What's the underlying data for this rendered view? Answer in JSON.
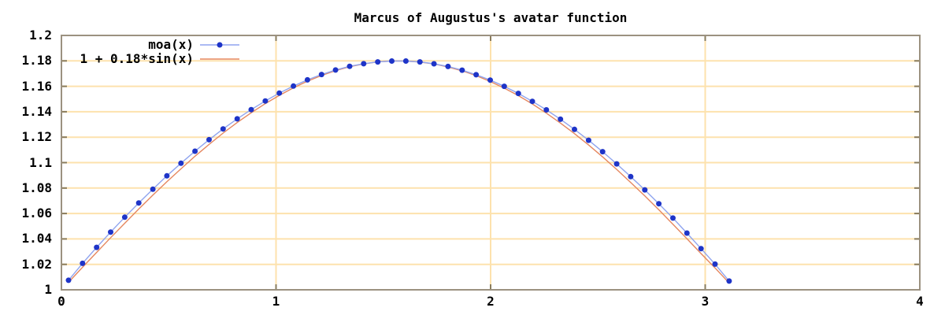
{
  "chart_data": {
    "type": "line",
    "title": "Marcus of Augustus's avatar function",
    "xlabel": "",
    "ylabel": "",
    "xlim": [
      0,
      4
    ],
    "ylim": [
      1,
      1.2
    ],
    "grid": true,
    "legend_position": "top-left",
    "x_ticks": {
      "values": [
        0,
        1,
        2,
        3,
        4
      ],
      "labels": [
        "0",
        "1",
        "2",
        "3",
        "4"
      ]
    },
    "y_ticks": {
      "values": [
        1,
        1.02,
        1.04,
        1.06,
        1.08,
        1.1,
        1.12,
        1.14,
        1.16,
        1.18,
        1.2
      ],
      "labels": [
        "1",
        "1.02",
        "1.04",
        "1.06",
        "1.08",
        "1.1",
        "1.12",
        "1.14",
        "1.16",
        "1.18",
        "1.2"
      ]
    },
    "series": [
      {
        "name": "moa(x)",
        "style": "linespoints",
        "line_color": "#8fa4ef",
        "point_color": "#1e34c8",
        "x": [
          0.033,
          0.0985,
          0.164,
          0.2295,
          0.295,
          0.3605,
          0.426,
          0.4915,
          0.557,
          0.6225,
          0.688,
          0.7535,
          0.819,
          0.8845,
          0.95,
          1.0155,
          1.081,
          1.1465,
          1.212,
          1.2775,
          1.343,
          1.4085,
          1.474,
          1.5395,
          1.605,
          1.6705,
          1.736,
          1.8015,
          1.867,
          1.9325,
          1.998,
          2.0635,
          2.129,
          2.1945,
          2.26,
          2.3255,
          2.391,
          2.4565,
          2.522,
          2.5875,
          2.653,
          2.7185,
          2.784,
          2.8495,
          2.915,
          2.9805,
          3.046,
          3.1115
        ],
        "y": [
          1.0075,
          1.0208,
          1.0334,
          1.0454,
          1.0571,
          1.0683,
          1.0791,
          1.0896,
          1.0995,
          1.109,
          1.118,
          1.1265,
          1.1344,
          1.1417,
          1.1485,
          1.1547,
          1.1602,
          1.1651,
          1.1693,
          1.1728,
          1.1757,
          1.1778,
          1.1792,
          1.1799,
          1.1799,
          1.1792,
          1.1777,
          1.1756,
          1.1727,
          1.1691,
          1.1649,
          1.16,
          1.1544,
          1.1482,
          1.1415,
          1.1341,
          1.1261,
          1.1176,
          1.1086,
          1.099,
          1.089,
          1.0786,
          1.0677,
          1.0564,
          1.0446,
          1.0324,
          1.0202,
          1.0069
        ]
      },
      {
        "name": "1 + 0.18*sin(x)",
        "style": "line",
        "line_color": "#e5875f",
        "x": [
          0.033,
          0.0985,
          0.164,
          0.2295,
          0.295,
          0.3605,
          0.426,
          0.4915,
          0.557,
          0.6225,
          0.688,
          0.7535,
          0.819,
          0.8845,
          0.95,
          1.0155,
          1.081,
          1.1465,
          1.212,
          1.2775,
          1.343,
          1.4085,
          1.474,
          1.5395,
          1.605,
          1.6705,
          1.736,
          1.8015,
          1.867,
          1.9325,
          1.998,
          2.0635,
          2.129,
          2.1945,
          2.26,
          2.3255,
          2.391,
          2.4565,
          2.522,
          2.5875,
          2.653,
          2.7185,
          2.784,
          2.8495,
          2.915,
          2.9805,
          3.046,
          3.1115
        ],
        "y": [
          1.0059,
          1.0177,
          1.0294,
          1.041,
          1.0523,
          1.0635,
          1.0744,
          1.085,
          1.0951,
          1.105,
          1.1143,
          1.1232,
          1.1315,
          1.1392,
          1.1464,
          1.1529,
          1.1588,
          1.164,
          1.1685,
          1.1723,
          1.1754,
          1.1776,
          1.1792,
          1.1799,
          1.1799,
          1.1791,
          1.1776,
          1.1752,
          1.1722,
          1.1684,
          1.1638,
          1.1586,
          1.1527,
          1.1461,
          1.1389,
          1.1311,
          1.1228,
          1.1139,
          1.1045,
          1.0947,
          1.0844,
          1.0738,
          1.0629,
          1.0516,
          1.0402,
          1.0285,
          1.0172,
          1.0054
        ]
      }
    ]
  },
  "colors": {
    "background": "#ffffff",
    "grid": "#fde2ad",
    "border": "#9b9180",
    "tick": "#8a7c5c",
    "text": "#000000"
  }
}
